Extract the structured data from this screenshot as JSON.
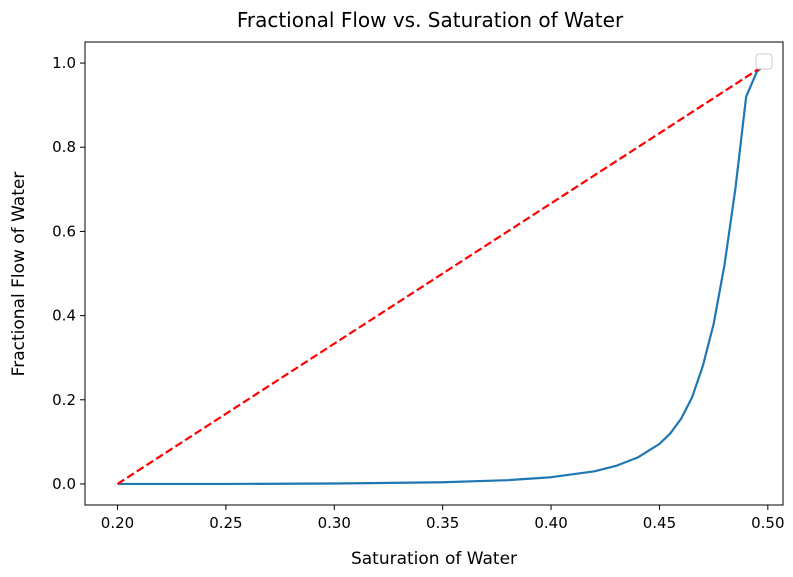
{
  "chart_data": {
    "type": "line",
    "title": "Fractional Flow vs. Saturation of Water",
    "xlabel": "Saturation of Water",
    "ylabel": "Fractional Flow of Water",
    "xlim": [
      0.185,
      0.507
    ],
    "ylim": [
      -0.05,
      1.05
    ],
    "xticks": [
      0.2,
      0.25,
      0.3,
      0.35,
      0.4,
      0.45,
      0.5
    ],
    "xtick_labels": [
      "0.20",
      "0.25",
      "0.30",
      "0.35",
      "0.40",
      "0.45",
      "0.50"
    ],
    "yticks": [
      0.0,
      0.2,
      0.4,
      0.6,
      0.8,
      1.0
    ],
    "ytick_labels": [
      "0.0",
      "0.2",
      "0.4",
      "0.6",
      "0.8",
      "1.0"
    ],
    "grid": false,
    "legend": {
      "placement": "top-right",
      "entries": []
    },
    "series": [
      {
        "color": "#1f77b4",
        "style": "solid",
        "x": [
          0.2,
          0.25,
          0.3,
          0.35,
          0.38,
          0.4,
          0.42,
          0.43,
          0.44,
          0.45,
          0.455,
          0.46,
          0.465,
          0.47,
          0.475,
          0.48,
          0.485,
          0.49,
          0.495,
          0.5
        ],
        "y": [
          0.0,
          0.0,
          0.001,
          0.004,
          0.009,
          0.016,
          0.03,
          0.043,
          0.063,
          0.095,
          0.12,
          0.155,
          0.205,
          0.28,
          0.38,
          0.52,
          0.7,
          0.92,
          0.98,
          1.0
        ]
      },
      {
        "color": "#ff0000",
        "style": "dashed",
        "x": [
          0.2,
          0.5
        ],
        "y": [
          0.0,
          1.0
        ]
      }
    ]
  }
}
